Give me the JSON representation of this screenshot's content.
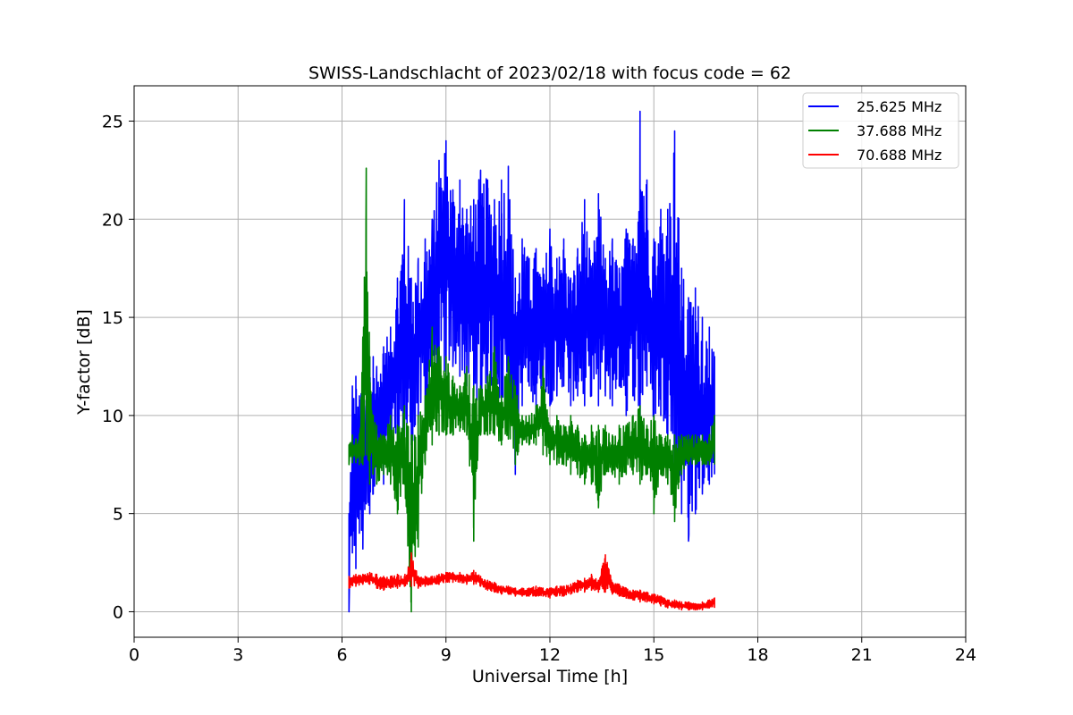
{
  "chart_data": {
    "type": "line",
    "title": "SWISS-Landschlacht of 2023/02/18 with focus code = 62",
    "xlabel": "Universal Time [h]",
    "ylabel": "Y-factor [dB]",
    "xlim": [
      0,
      24
    ],
    "ylim": [
      -1.3,
      26.8
    ],
    "xticks": [
      0,
      3,
      6,
      9,
      12,
      15,
      18,
      21,
      24
    ],
    "yticks": [
      0,
      5,
      10,
      15,
      20,
      25
    ],
    "grid": true,
    "legend_position": "top-right",
    "series": [
      {
        "name": "25.625 MHz",
        "color": "#0000ff",
        "x": [
          6.2,
          6.3,
          6.4,
          6.5,
          6.6,
          6.7,
          6.8,
          6.9,
          7.0,
          7.2,
          7.4,
          7.6,
          7.8,
          8.0,
          8.2,
          8.4,
          8.6,
          8.8,
          9.0,
          9.2,
          9.4,
          9.6,
          9.8,
          10.0,
          10.2,
          10.4,
          10.6,
          10.8,
          11.0,
          11.2,
          11.4,
          11.6,
          11.8,
          12.0,
          12.2,
          12.4,
          12.6,
          12.8,
          13.0,
          13.2,
          13.4,
          13.6,
          13.8,
          14.0,
          14.2,
          14.4,
          14.6,
          14.8,
          15.0,
          15.2,
          15.4,
          15.6,
          15.8,
          16.0,
          16.2,
          16.4,
          16.6,
          16.75
        ],
        "min": [
          0.0,
          3.0,
          2.2,
          4.0,
          3.2,
          5.5,
          5.0,
          6.0,
          7.0,
          6.5,
          7.5,
          8.0,
          7.5,
          8.5,
          9.5,
          10.0,
          11.5,
          11.0,
          12.0,
          12.5,
          12.0,
          11.5,
          11.0,
          10.5,
          11.0,
          11.5,
          10.0,
          11.0,
          7.0,
          10.5,
          11.5,
          10.0,
          11.5,
          10.5,
          11.0,
          11.5,
          10.5,
          11.0,
          10.5,
          11.0,
          10.5,
          11.0,
          10.5,
          11.5,
          10.0,
          11.0,
          9.0,
          11.5,
          9.5,
          10.0,
          9.0,
          6.0,
          5.0,
          3.6,
          5.0,
          6.0,
          6.5,
          7.0
        ],
        "max": [
          5.0,
          11.5,
          12.0,
          11.0,
          12.5,
          10.5,
          13.0,
          13.0,
          12.5,
          13.5,
          14.5,
          17.0,
          21.0,
          17.0,
          18.0,
          19.0,
          20.0,
          23.0,
          24.0,
          21.5,
          22.0,
          20.5,
          21.0,
          22.5,
          22.0,
          21.0,
          22.0,
          22.7,
          17.0,
          19.0,
          18.0,
          18.5,
          17.5,
          19.5,
          18.0,
          19.0,
          17.0,
          18.5,
          21.0,
          17.5,
          21.3,
          18.0,
          19.0,
          17.5,
          19.5,
          19.0,
          25.5,
          22.0,
          19.0,
          20.5,
          20.5,
          24.5,
          17.5,
          16.0,
          16.5,
          15.0,
          14.5,
          13.0
        ]
      },
      {
        "name": "37.688 MHz",
        "color": "#008000",
        "x": [
          6.2,
          6.3,
          6.4,
          6.5,
          6.6,
          6.7,
          6.8,
          6.9,
          7.0,
          7.2,
          7.4,
          7.6,
          7.8,
          8.0,
          8.2,
          8.4,
          8.6,
          8.8,
          9.0,
          9.2,
          9.4,
          9.6,
          9.8,
          10.0,
          10.2,
          10.4,
          10.6,
          10.8,
          11.0,
          11.2,
          11.4,
          11.6,
          11.8,
          12.0,
          12.2,
          12.4,
          12.6,
          12.8,
          13.0,
          13.2,
          13.4,
          13.6,
          13.8,
          14.0,
          14.2,
          14.4,
          14.6,
          14.8,
          15.0,
          15.2,
          15.4,
          15.6,
          15.8,
          16.0,
          16.2,
          16.4,
          16.6,
          16.75
        ],
        "min": [
          7.5,
          7.6,
          7.6,
          7.5,
          7.5,
          8.0,
          6.5,
          7.0,
          6.5,
          7.0,
          6.5,
          5.0,
          6.5,
          0.0,
          3.3,
          7.5,
          8.5,
          9.0,
          9.0,
          9.0,
          9.2,
          9.0,
          3.6,
          9.0,
          9.0,
          9.0,
          8.5,
          8.8,
          7.5,
          8.5,
          8.5,
          8.5,
          8.0,
          7.5,
          7.5,
          7.5,
          7.0,
          7.0,
          6.5,
          6.5,
          5.3,
          7.0,
          7.0,
          6.5,
          7.0,
          7.0,
          6.5,
          7.0,
          5.0,
          7.0,
          6.5,
          4.6,
          7.0,
          7.5,
          7.5,
          7.5,
          7.5,
          7.5
        ],
        "max": [
          8.5,
          9.0,
          8.8,
          9.0,
          14.0,
          22.6,
          13.0,
          10.0,
          9.5,
          9.0,
          10.0,
          9.5,
          10.5,
          9.0,
          10.0,
          11.0,
          14.5,
          13.5,
          13.0,
          12.0,
          11.5,
          12.5,
          11.5,
          11.5,
          12.0,
          13.5,
          11.0,
          13.0,
          11.5,
          10.0,
          10.0,
          10.5,
          12.5,
          9.5,
          10.0,
          9.5,
          10.0,
          9.5,
          9.0,
          9.5,
          9.5,
          9.5,
          9.0,
          9.5,
          9.5,
          10.0,
          10.5,
          9.5,
          10.0,
          9.0,
          9.0,
          9.0,
          9.0,
          9.0,
          9.0,
          9.0,
          9.0,
          10.0
        ]
      },
      {
        "name": "70.688 MHz",
        "color": "#ff0000",
        "x": [
          6.2,
          6.4,
          6.6,
          6.8,
          7.0,
          7.2,
          7.4,
          7.6,
          7.8,
          8.0,
          8.2,
          8.4,
          8.6,
          8.8,
          9.0,
          9.2,
          9.4,
          9.6,
          9.8,
          10.0,
          10.2,
          10.4,
          10.6,
          10.8,
          11.0,
          11.2,
          11.4,
          11.6,
          11.8,
          12.0,
          12.2,
          12.4,
          12.6,
          12.8,
          13.0,
          13.2,
          13.4,
          13.6,
          13.8,
          14.0,
          14.2,
          14.4,
          14.6,
          14.8,
          15.0,
          15.2,
          15.4,
          15.6,
          15.8,
          16.0,
          16.2,
          16.4,
          16.6,
          16.75
        ],
        "min": [
          1.2,
          1.3,
          1.4,
          1.4,
          1.2,
          1.1,
          1.2,
          1.2,
          1.3,
          1.3,
          1.2,
          1.3,
          1.4,
          1.4,
          1.5,
          1.5,
          1.5,
          1.4,
          1.4,
          1.3,
          1.1,
          1.0,
          0.9,
          0.9,
          0.8,
          0.8,
          0.8,
          0.8,
          0.8,
          0.7,
          0.8,
          0.8,
          0.9,
          1.0,
          1.0,
          1.1,
          1.0,
          1.0,
          0.9,
          0.8,
          0.7,
          0.6,
          0.5,
          0.5,
          0.4,
          0.3,
          0.2,
          0.2,
          0.1,
          0.1,
          0.1,
          0.1,
          0.2,
          0.2
        ],
        "max": [
          1.8,
          1.9,
          1.9,
          2.0,
          1.9,
          1.8,
          1.8,
          1.9,
          1.8,
          3.0,
          1.8,
          1.8,
          1.8,
          1.9,
          2.0,
          2.0,
          2.0,
          1.9,
          2.1,
          1.8,
          1.6,
          1.5,
          1.3,
          1.3,
          1.2,
          1.2,
          1.2,
          1.3,
          1.2,
          1.2,
          1.3,
          1.3,
          1.4,
          1.6,
          1.7,
          1.9,
          1.6,
          2.9,
          1.5,
          1.4,
          1.2,
          1.1,
          1.1,
          1.0,
          0.9,
          0.8,
          0.6,
          0.6,
          0.5,
          0.5,
          0.4,
          0.5,
          0.6,
          0.7
        ]
      }
    ]
  }
}
